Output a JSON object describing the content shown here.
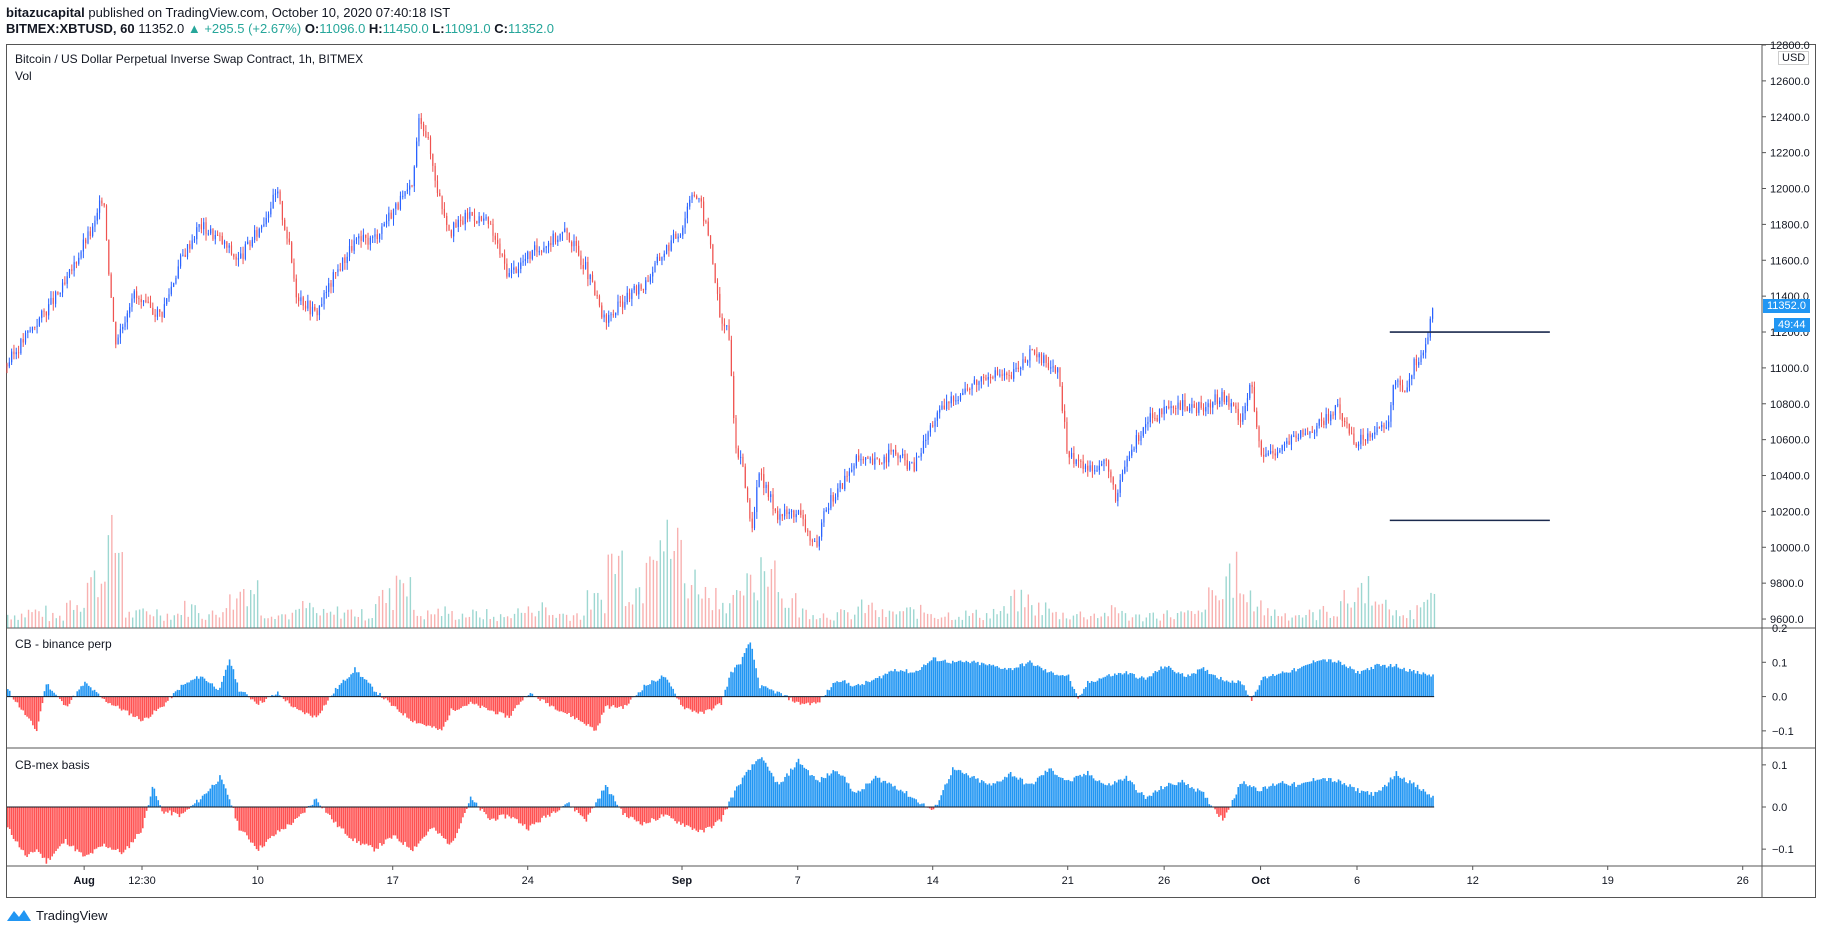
{
  "header": {
    "author": "bitazucapital",
    "published_text": "published on TradingView.com, October 10, 2020 07:40:18 IST",
    "symbol": "BITMEX:XBTUSD, 60",
    "last": "11352.0",
    "change": "▲ +295.5 (+2.67%)",
    "o_label": "O:",
    "o": "11096.0",
    "h_label": "H:",
    "h": "11450.0",
    "l_label": "L:",
    "l": "11091.0",
    "c_label": "C:",
    "c": "11352.0"
  },
  "panes": {
    "main_title": "Bitcoin / US Dollar Perpetual Inverse Swap Contract, 1h, BITMEX",
    "vol_label": "Vol",
    "cb_binance": "CB - binance perp",
    "cb_mex": "CB-mex basis",
    "currency": "USD",
    "last_price_tag": "11352.0",
    "countdown_tag": "49:44"
  },
  "footer": {
    "brand": "TradingView"
  },
  "colors": {
    "up": "#26a69a",
    "candle_up": "#2962ff",
    "candle_down": "#ef5350",
    "pos_fill": "#2196f3",
    "neg_fill": "#ff5252",
    "hline": "#1b2a4e"
  },
  "chart_data": [
    {
      "type": "line",
      "title": "Bitcoin / US Dollar Perpetual Inverse Swap Contract, 1h, BITMEX",
      "ylim": [
        9550,
        12800
      ],
      "y_ticks": [
        "12800.0",
        "12600.0",
        "12400.0",
        "12200.0",
        "12000.0",
        "11800.0",
        "11600.0",
        "11400.0",
        "11200.0",
        "11000.0",
        "10800.0",
        "10600.0",
        "10400.0",
        "10200.0",
        "10000.0",
        "9800.0",
        "9600.0"
      ],
      "x_ticks": [
        "Aug",
        "12:30",
        "10",
        "17",
        "24",
        "Sep",
        "7",
        "14",
        "21",
        "26",
        "Oct",
        "6",
        "12",
        "19",
        "26"
      ],
      "x_range_days": [
        -4,
        87
      ],
      "x_tick_days": [
        0,
        3,
        9,
        16,
        23,
        31,
        37,
        44,
        51,
        56,
        61,
        66,
        72,
        79,
        86
      ],
      "series": [
        {
          "values": [
            [
              -4,
              11020
            ],
            [
              -3,
              11180
            ],
            [
              -2,
              11320
            ],
            [
              -1,
              11460
            ],
            [
              0,
              11700
            ],
            [
              0.5,
              11780
            ],
            [
              1,
              11980
            ],
            [
              1.3,
              11520
            ],
            [
              1.6,
              11150
            ],
            [
              2,
              11240
            ],
            [
              2.5,
              11420
            ],
            [
              3,
              11350
            ],
            [
              4,
              11300
            ],
            [
              5,
              11600
            ],
            [
              6,
              11800
            ],
            [
              7,
              11720
            ],
            [
              8,
              11600
            ],
            [
              9,
              11760
            ],
            [
              10,
              11980
            ],
            [
              10.6,
              11700
            ],
            [
              11,
              11420
            ],
            [
              12,
              11300
            ],
            [
              13,
              11520
            ],
            [
              14,
              11700
            ],
            [
              15,
              11720
            ],
            [
              16,
              11880
            ],
            [
              17,
              12000
            ],
            [
              17.4,
              12420
            ],
            [
              17.8,
              12280
            ],
            [
              18.4,
              11960
            ],
            [
              19,
              11760
            ],
            [
              20,
              11860
            ],
            [
              21,
              11800
            ],
            [
              22,
              11520
            ],
            [
              23,
              11620
            ],
            [
              24,
              11700
            ],
            [
              25,
              11760
            ],
            [
              26,
              11560
            ],
            [
              27,
              11250
            ],
            [
              28,
              11380
            ],
            [
              29,
              11460
            ],
            [
              30,
              11640
            ],
            [
              31,
              11780
            ],
            [
              31.5,
              12000
            ],
            [
              32,
              11900
            ],
            [
              32.5,
              11680
            ],
            [
              33,
              11250
            ],
            [
              33.4,
              11220
            ],
            [
              33.8,
              10550
            ],
            [
              34.2,
              10420
            ],
            [
              34.6,
              10100
            ],
            [
              35,
              10400
            ],
            [
              36,
              10180
            ],
            [
              37,
              10200
            ],
            [
              38,
              9980
            ],
            [
              38.5,
              10240
            ],
            [
              39,
              10300
            ],
            [
              40,
              10480
            ],
            [
              41,
              10470
            ],
            [
              42,
              10530
            ],
            [
              43,
              10440
            ],
            [
              44,
              10700
            ],
            [
              45,
              10830
            ],
            [
              46,
              10900
            ],
            [
              47,
              10980
            ],
            [
              48,
              10940
            ],
            [
              49,
              11080
            ],
            [
              49.5,
              11050
            ],
            [
              50,
              11030
            ],
            [
              50.5,
              10970
            ],
            [
              51,
              10520
            ],
            [
              52,
              10440
            ],
            [
              53,
              10480
            ],
            [
              53.5,
              10250
            ],
            [
              54,
              10470
            ],
            [
              55,
              10700
            ],
            [
              56,
              10750
            ],
            [
              57,
              10790
            ],
            [
              58,
              10770
            ],
            [
              59,
              10850
            ],
            [
              60,
              10720
            ],
            [
              60.5,
              10920
            ],
            [
              61,
              10500
            ],
            [
              62,
              10560
            ],
            [
              63,
              10620
            ],
            [
              64,
              10680
            ],
            [
              65,
              10770
            ],
            [
              66,
              10580
            ],
            [
              67,
              10680
            ],
            [
              67.5,
              10640
            ],
            [
              68,
              10950
            ],
            [
              68.5,
              10880
            ],
            [
              69,
              11040
            ],
            [
              69.5,
              11096
            ],
            [
              70,
              11352
            ]
          ]
        }
      ],
      "h_lines": [
        11200,
        10150
      ]
    },
    {
      "type": "area",
      "title": "Vol",
      "values_daily_relative": [
        0.1,
        0.12,
        0.08,
        0.2,
        0.35,
        0.6,
        0.1,
        0.12,
        0.1,
        0.15,
        0.1,
        0.2,
        0.3,
        0.12,
        0.1,
        0.15,
        0.1,
        0.12,
        0.1,
        0.22,
        0.4,
        0.1,
        0.12,
        0.1,
        0.1,
        0.08,
        0.12,
        0.15,
        0.1,
        0.1,
        0.2,
        0.5,
        0.3,
        0.8,
        0.6,
        0.35,
        0.25,
        0.2,
        0.3,
        0.5,
        0.2,
        0.12,
        0.1,
        0.1,
        0.15,
        0.1,
        0.12,
        0.12,
        0.1,
        0.1,
        0.1,
        0.12,
        0.2,
        0.15,
        0.1,
        0.1,
        0.1,
        0.12,
        0.08,
        0.1,
        0.1,
        0.1,
        0.22,
        0.4,
        0.2,
        0.12,
        0.1,
        0.1,
        0.12,
        0.2,
        0.3,
        0.15,
        0.1,
        0.2,
        0.25
      ]
    },
    {
      "type": "area",
      "title": "CB - binance perp",
      "ylim": [
        -0.15,
        0.2
      ],
      "y_ticks": [
        "0.2",
        "0.1",
        "0.0",
        "−0.1"
      ],
      "values": [
        [
          -4,
          0.02
        ],
        [
          -3,
          -0.06
        ],
        [
          -2.5,
          -0.1
        ],
        [
          -2,
          0.04
        ],
        [
          -1,
          -0.03
        ],
        [
          0,
          0.04
        ],
        [
          1,
          -0.01
        ],
        [
          2,
          -0.04
        ],
        [
          3,
          -0.07
        ],
        [
          4,
          -0.03
        ],
        [
          5,
          0.03
        ],
        [
          6,
          0.06
        ],
        [
          7,
          0.02
        ],
        [
          7.5,
          0.11
        ],
        [
          8,
          0.02
        ],
        [
          9,
          -0.02
        ],
        [
          10,
          0.01
        ],
        [
          11,
          -0.04
        ],
        [
          12,
          -0.06
        ],
        [
          13,
          0.02
        ],
        [
          14,
          0.08
        ],
        [
          15,
          0.02
        ],
        [
          16,
          -0.03
        ],
        [
          17,
          -0.07
        ],
        [
          18,
          -0.09
        ],
        [
          18.5,
          -0.1
        ],
        [
          19,
          -0.04
        ],
        [
          20,
          -0.02
        ],
        [
          21,
          -0.04
        ],
        [
          22,
          -0.06
        ],
        [
          22.5,
          -0.02
        ],
        [
          23,
          0.01
        ],
        [
          24,
          -0.02
        ],
        [
          25,
          -0.05
        ],
        [
          26,
          -0.08
        ],
        [
          26.5,
          -0.1
        ],
        [
          27,
          -0.03
        ],
        [
          28,
          -0.03
        ],
        [
          29,
          0.03
        ],
        [
          30,
          0.06
        ],
        [
          30.5,
          0.02
        ],
        [
          31,
          -0.03
        ],
        [
          32,
          -0.05
        ],
        [
          33,
          -0.02
        ],
        [
          33.5,
          0.07
        ],
        [
          34,
          0.1
        ],
        [
          34.5,
          0.16
        ],
        [
          35,
          0.03
        ],
        [
          36,
          0.01
        ],
        [
          37,
          -0.02
        ],
        [
          38,
          -0.02
        ],
        [
          39,
          0.05
        ],
        [
          40,
          0.03
        ],
        [
          41,
          0.05
        ],
        [
          42,
          0.08
        ],
        [
          43,
          0.07
        ],
        [
          44,
          0.11
        ],
        [
          45,
          0.1
        ],
        [
          46,
          0.1
        ],
        [
          47,
          0.09
        ],
        [
          48,
          0.08
        ],
        [
          49,
          0.1
        ],
        [
          50,
          0.07
        ],
        [
          51,
          0.06
        ],
        [
          51.5,
          -0.01
        ],
        [
          52,
          0.04
        ],
        [
          53,
          0.06
        ],
        [
          54,
          0.07
        ],
        [
          55,
          0.05
        ],
        [
          56,
          0.09
        ],
        [
          57,
          0.06
        ],
        [
          58,
          0.08
        ],
        [
          59,
          0.05
        ],
        [
          60,
          0.04
        ],
        [
          60.5,
          -0.01
        ],
        [
          61,
          0.05
        ],
        [
          62,
          0.07
        ],
        [
          63,
          0.08
        ],
        [
          64,
          0.11
        ],
        [
          65,
          0.1
        ],
        [
          66,
          0.07
        ],
        [
          67,
          0.09
        ],
        [
          68,
          0.09
        ],
        [
          69,
          0.07
        ],
        [
          70,
          0.06
        ]
      ]
    },
    {
      "type": "area",
      "title": "CB-mex basis",
      "ylim": [
        -0.14,
        0.14
      ],
      "y_ticks": [
        "0.1",
        "0.0",
        "−0.1"
      ],
      "values": [
        [
          -4,
          -0.05
        ],
        [
          -3,
          -0.12
        ],
        [
          -2.5,
          -0.1
        ],
        [
          -2,
          -0.13
        ],
        [
          -1,
          -0.08
        ],
        [
          0,
          -0.12
        ],
        [
          1,
          -0.09
        ],
        [
          2,
          -0.11
        ],
        [
          3,
          -0.05
        ],
        [
          3.5,
          0.05
        ],
        [
          4,
          -0.01
        ],
        [
          5,
          -0.02
        ],
        [
          6,
          0.02
        ],
        [
          7,
          0.07
        ],
        [
          7.5,
          0.02
        ],
        [
          8,
          -0.05
        ],
        [
          9,
          -0.1
        ],
        [
          10,
          -0.06
        ],
        [
          11,
          -0.03
        ],
        [
          12,
          0.02
        ],
        [
          13,
          -0.04
        ],
        [
          14,
          -0.08
        ],
        [
          15,
          -0.1
        ],
        [
          16,
          -0.07
        ],
        [
          17,
          -0.1
        ],
        [
          18,
          -0.05
        ],
        [
          19,
          -0.09
        ],
        [
          20,
          0.02
        ],
        [
          21,
          -0.03
        ],
        [
          22,
          -0.02
        ],
        [
          23,
          -0.05
        ],
        [
          24,
          -0.02
        ],
        [
          25,
          0.01
        ],
        [
          26,
          -0.03
        ],
        [
          27,
          0.05
        ],
        [
          28,
          -0.02
        ],
        [
          29,
          -0.04
        ],
        [
          30,
          -0.02
        ],
        [
          31,
          -0.04
        ],
        [
          32,
          -0.06
        ],
        [
          33,
          -0.03
        ],
        [
          33.5,
          0.02
        ],
        [
          34,
          0.06
        ],
        [
          35,
          0.12
        ],
        [
          36,
          0.05
        ],
        [
          37,
          0.11
        ],
        [
          38,
          0.06
        ],
        [
          39,
          0.09
        ],
        [
          40,
          0.03
        ],
        [
          41,
          0.07
        ],
        [
          42,
          0.05
        ],
        [
          43,
          0.02
        ],
        [
          44,
          -0.01
        ],
        [
          45,
          0.09
        ],
        [
          46,
          0.07
        ],
        [
          47,
          0.05
        ],
        [
          48,
          0.08
        ],
        [
          49,
          0.05
        ],
        [
          50,
          0.09
        ],
        [
          51,
          0.06
        ],
        [
          52,
          0.08
        ],
        [
          53,
          0.05
        ],
        [
          54,
          0.07
        ],
        [
          55,
          0.02
        ],
        [
          56,
          0.05
        ],
        [
          57,
          0.06
        ],
        [
          58,
          0.03
        ],
        [
          59,
          -0.03
        ],
        [
          60,
          0.06
        ],
        [
          61,
          0.04
        ],
        [
          62,
          0.06
        ],
        [
          63,
          0.05
        ],
        [
          64,
          0.07
        ],
        [
          65,
          0.06
        ],
        [
          66,
          0.04
        ],
        [
          67,
          0.03
        ],
        [
          68,
          0.08
        ],
        [
          69,
          0.05
        ],
        [
          70,
          0.02
        ]
      ]
    }
  ]
}
